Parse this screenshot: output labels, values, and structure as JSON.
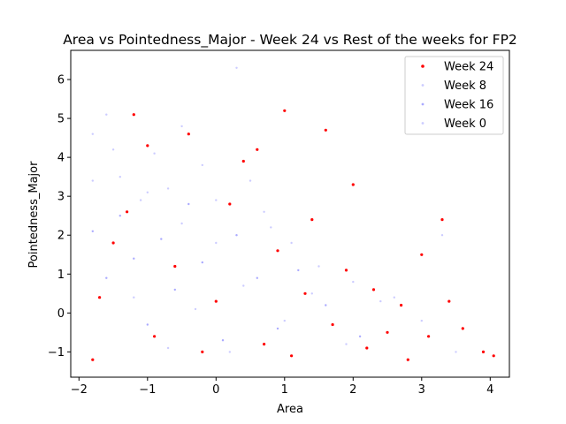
{
  "chart_data": {
    "type": "scatter",
    "title": "Area vs Pointedness_Major - Week 24 vs Rest of the weeks for FP2",
    "xlabel": "Area",
    "ylabel": "Pointedness_Major",
    "xlim": [
      -2.12,
      4.28
    ],
    "ylim": [
      -1.65,
      6.75
    ],
    "xticks": [
      -2,
      -1,
      0,
      1,
      2,
      3,
      4
    ],
    "yticks": [
      -1,
      0,
      1,
      2,
      3,
      4,
      5,
      6
    ],
    "grid": false,
    "legend_position": "top-right",
    "series": [
      {
        "name": "Week 24",
        "color": "#ff0000",
        "marker_size": 1.6,
        "points": [
          [
            -1.8,
            -1.2
          ],
          [
            -1.7,
            0.4
          ],
          [
            -1.5,
            1.8
          ],
          [
            -1.3,
            2.6
          ],
          [
            -1.2,
            5.1
          ],
          [
            -1.0,
            4.3
          ],
          [
            -0.9,
            -0.6
          ],
          [
            -0.6,
            1.2
          ],
          [
            -0.4,
            4.6
          ],
          [
            -0.2,
            -1.0
          ],
          [
            0.0,
            0.3
          ],
          [
            0.2,
            2.8
          ],
          [
            0.4,
            3.9
          ],
          [
            0.6,
            4.2
          ],
          [
            0.7,
            -0.8
          ],
          [
            0.9,
            1.6
          ],
          [
            1.0,
            5.2
          ],
          [
            1.1,
            -1.1
          ],
          [
            1.3,
            0.5
          ],
          [
            1.4,
            2.4
          ],
          [
            1.6,
            4.7
          ],
          [
            1.7,
            -0.3
          ],
          [
            1.9,
            1.1
          ],
          [
            2.0,
            3.3
          ],
          [
            2.2,
            -0.9
          ],
          [
            2.3,
            0.6
          ],
          [
            2.5,
            -0.5
          ],
          [
            2.7,
            0.2
          ],
          [
            2.8,
            -1.2
          ],
          [
            3.0,
            1.5
          ],
          [
            3.1,
            -0.6
          ],
          [
            3.3,
            2.4
          ],
          [
            3.4,
            0.3
          ],
          [
            3.6,
            -0.4
          ],
          [
            3.9,
            -1.0
          ],
          [
            4.05,
            -1.1
          ]
        ]
      },
      {
        "name": "Week 8",
        "color": "#ccccff",
        "marker_size": 1.2,
        "points": [
          [
            -1.8,
            4.6
          ],
          [
            -1.6,
            5.1
          ],
          [
            -1.4,
            3.5
          ],
          [
            -1.1,
            2.9
          ],
          [
            -0.9,
            4.1
          ],
          [
            -0.7,
            3.2
          ],
          [
            -0.5,
            4.8
          ],
          [
            -0.2,
            3.8
          ],
          [
            0.0,
            2.9
          ],
          [
            0.3,
            6.3
          ],
          [
            0.5,
            3.4
          ],
          [
            0.8,
            2.2
          ],
          [
            1.1,
            1.8
          ],
          [
            1.5,
            1.2
          ],
          [
            2.0,
            0.8
          ],
          [
            2.6,
            0.4
          ],
          [
            3.0,
            -0.2
          ],
          [
            3.3,
            2.0
          ]
        ]
      },
      {
        "name": "Week 16",
        "color": "#aaaaff",
        "marker_size": 1.2,
        "points": [
          [
            -1.8,
            2.1
          ],
          [
            -1.6,
            0.9
          ],
          [
            -1.4,
            2.5
          ],
          [
            -1.2,
            1.4
          ],
          [
            -1.0,
            -0.3
          ],
          [
            -0.8,
            1.9
          ],
          [
            -0.6,
            0.6
          ],
          [
            -0.4,
            2.8
          ],
          [
            -0.2,
            1.3
          ],
          [
            0.1,
            -0.7
          ],
          [
            0.3,
            2.0
          ],
          [
            0.6,
            0.9
          ],
          [
            0.9,
            -0.4
          ],
          [
            1.2,
            1.1
          ],
          [
            1.6,
            0.2
          ],
          [
            2.1,
            -0.6
          ]
        ]
      },
      {
        "name": "Week 0",
        "color": "#ccccff",
        "marker_size": 1.2,
        "points": [
          [
            -1.8,
            3.4
          ],
          [
            -1.5,
            4.2
          ],
          [
            -1.2,
            0.4
          ],
          [
            -1.0,
            3.1
          ],
          [
            -0.7,
            -0.9
          ],
          [
            -0.5,
            2.3
          ],
          [
            -0.3,
            0.1
          ],
          [
            0.0,
            1.8
          ],
          [
            0.2,
            -1.0
          ],
          [
            0.4,
            0.7
          ],
          [
            0.7,
            2.6
          ],
          [
            1.0,
            -0.2
          ],
          [
            1.4,
            0.5
          ],
          [
            1.9,
            -0.8
          ],
          [
            2.4,
            0.3
          ],
          [
            3.5,
            -1.0
          ]
        ]
      }
    ]
  }
}
